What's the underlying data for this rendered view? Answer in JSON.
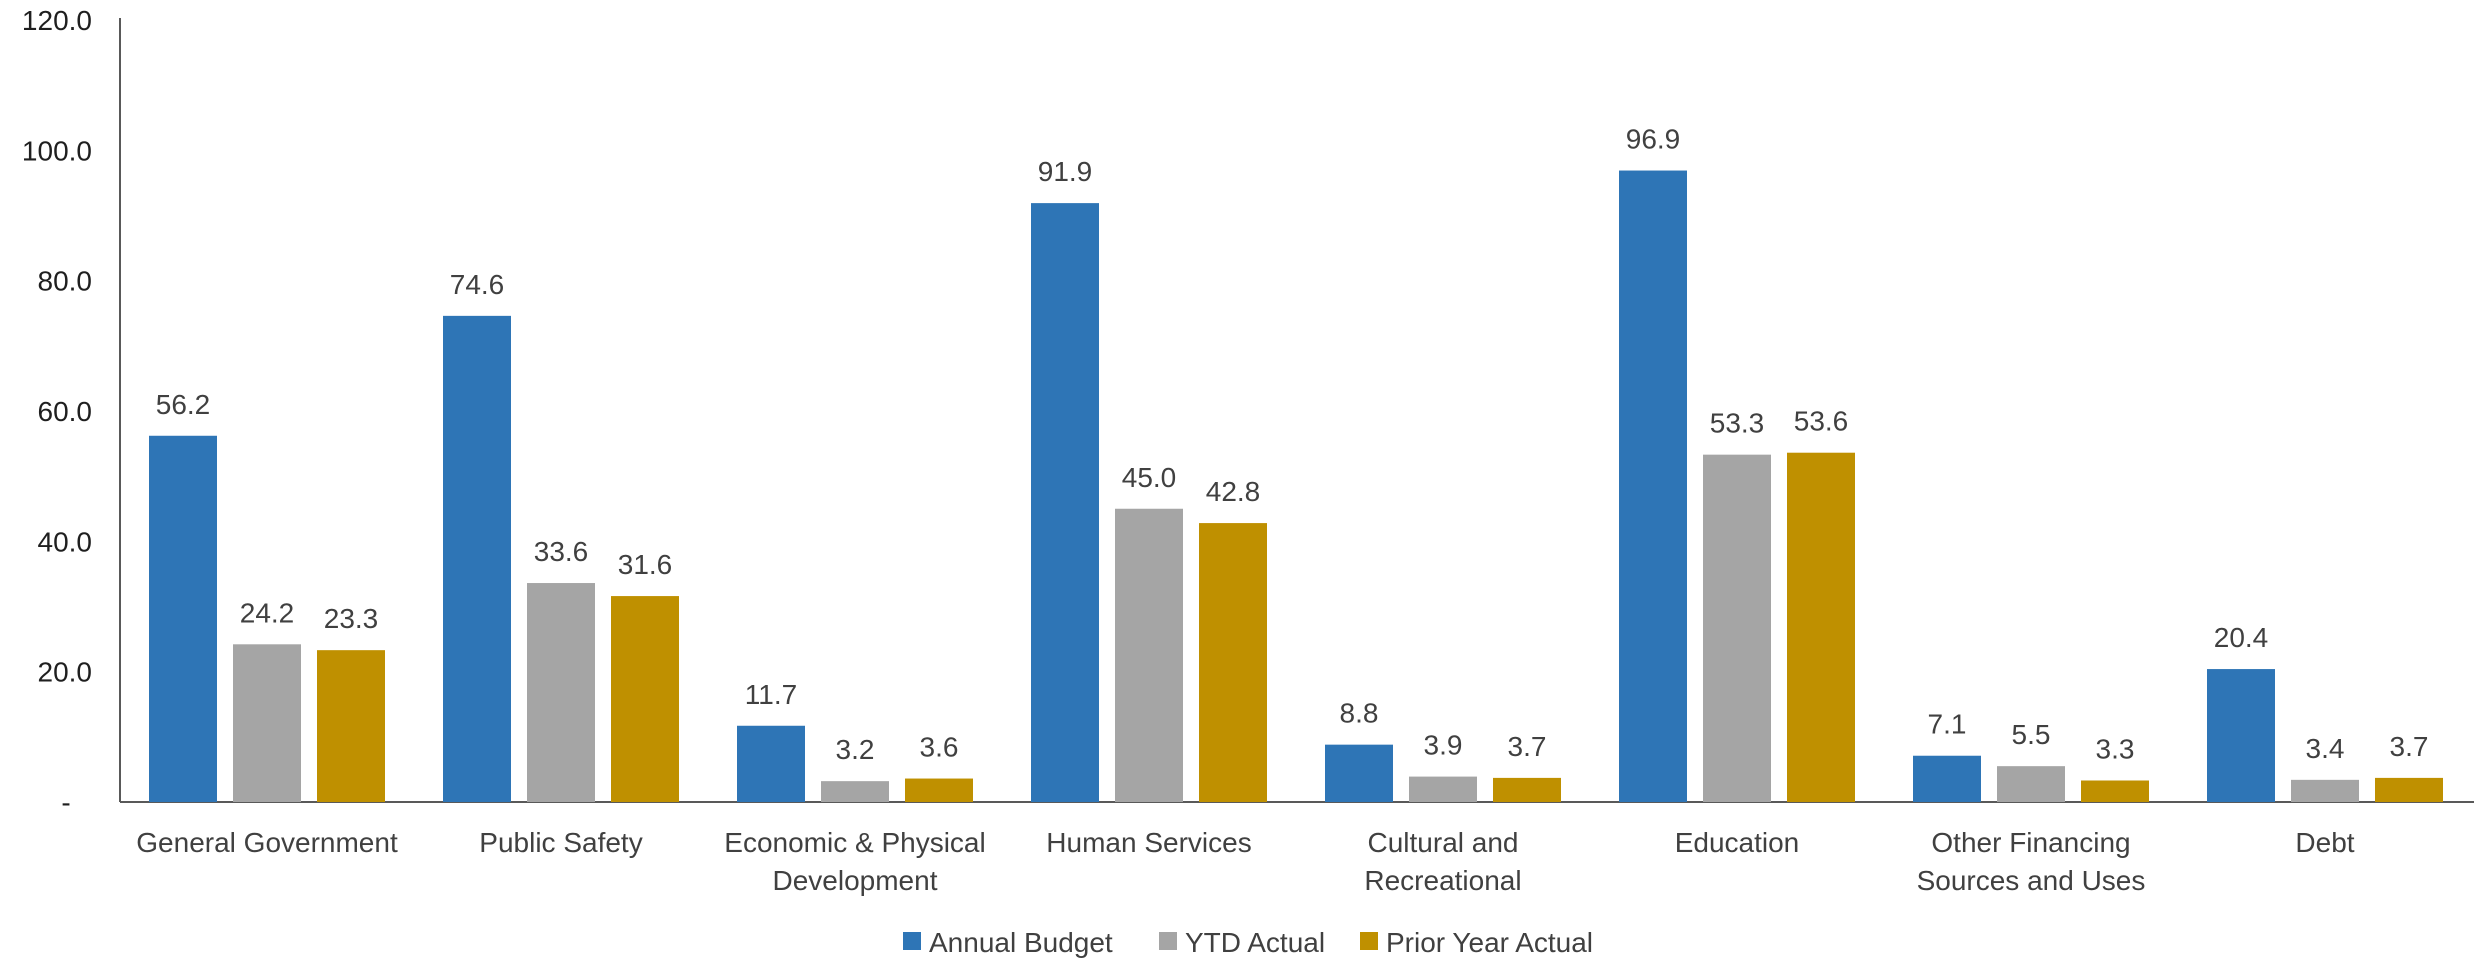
{
  "chart_data": {
    "type": "bar",
    "title": "",
    "xlabel": "",
    "ylabel": "",
    "ylim": [
      0,
      120
    ],
    "y_ticks": [
      {
        "value": 0,
        "label": "-"
      },
      {
        "value": 20,
        "label": "20.0"
      },
      {
        "value": 40,
        "label": "40.0"
      },
      {
        "value": 60,
        "label": "60.0"
      },
      {
        "value": 80,
        "label": "80.0"
      },
      {
        "value": 100,
        "label": "100.0"
      },
      {
        "value": 120,
        "label": "120.0"
      }
    ],
    "grid": false,
    "legend_position": "bottom",
    "categories": [
      [
        "General Government"
      ],
      [
        "Public Safety"
      ],
      [
        "Economic & Physical",
        "Development"
      ],
      [
        "Human Services"
      ],
      [
        "Cultural and",
        "Recreational"
      ],
      [
        "Education"
      ],
      [
        "Other Financing",
        "Sources and Uses"
      ],
      [
        "Debt"
      ]
    ],
    "series": [
      {
        "name": "Annual Budget",
        "color": "#2E75B6",
        "values": [
          56.2,
          74.6,
          11.7,
          91.9,
          8.8,
          96.9,
          7.1,
          20.4
        ],
        "labels": [
          "56.2",
          "74.6",
          "11.7",
          "91.9",
          "8.8",
          "96.9",
          "7.1",
          "20.4"
        ]
      },
      {
        "name": "YTD Actual",
        "color": "#A5A5A5",
        "values": [
          24.2,
          33.6,
          3.2,
          45.0,
          3.9,
          53.3,
          5.5,
          3.4
        ],
        "labels": [
          "24.2",
          "33.6",
          "3.2",
          "45.0",
          "3.9",
          "53.3",
          "5.5",
          "3.4"
        ]
      },
      {
        "name": "Prior Year Actual",
        "color": "#BF9000",
        "values": [
          23.3,
          31.6,
          3.6,
          42.8,
          3.7,
          53.6,
          3.3,
          3.7
        ],
        "labels": [
          "23.3",
          "31.6",
          "3.6",
          "42.8",
          "3.7",
          "53.6",
          "3.3",
          "3.7"
        ]
      }
    ]
  }
}
